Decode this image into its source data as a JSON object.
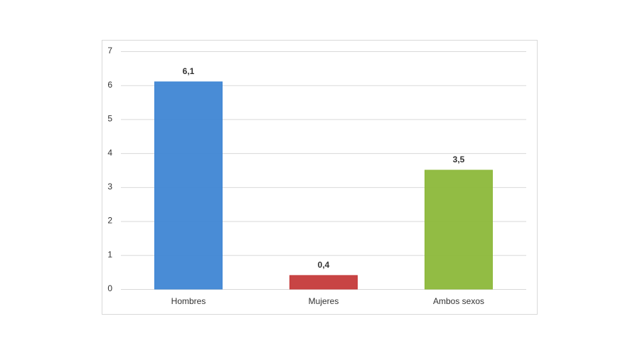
{
  "chart_data": {
    "type": "bar",
    "categories": [
      "Hombres",
      "Mujeres",
      "Ambos sexos"
    ],
    "values": [
      6.1,
      0.4,
      3.5
    ],
    "value_labels": [
      "6,1",
      "0,4",
      "3,5"
    ],
    "colors": [
      "#3f86d4",
      "#c53a3a",
      "#8cb83a"
    ],
    "ylim": [
      0,
      7
    ],
    "yticks": [
      0,
      1,
      2,
      3,
      4,
      5,
      6,
      7
    ],
    "grid": true
  }
}
